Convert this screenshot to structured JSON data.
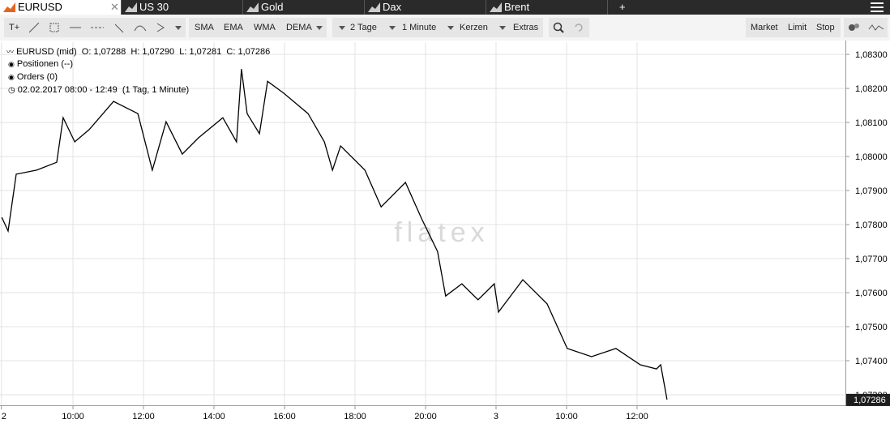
{
  "tabs": [
    "EURUSD",
    "US 30",
    "Gold",
    "Dax",
    "Brent"
  ],
  "new_tab": "+",
  "toolbar": {
    "text_tool": "T+",
    "indicators": [
      "SMA",
      "EMA",
      "WMA",
      "DEMA"
    ],
    "period": "2 Tage",
    "interval": "1 Minute",
    "style": "Kerzen",
    "extras": "Extras",
    "orders": [
      "Market",
      "Limit",
      "Stop"
    ]
  },
  "info": {
    "open": "O: 1,07288",
    "high": "H: 1,07290",
    "low": "L: 1,07281",
    "close": "C: 1,07286",
    "positions": "Positionen (--)",
    "orders": "Orders (0)",
    "range": "02.02.2017 08:00 - 12:49",
    "resolution": "(1 Tag, 1 Minute)"
  },
  "watermark": "flatex",
  "chart_data": {
    "type": "line",
    "x": [
      7.98,
      8.16,
      8.39,
      8.97,
      9.54,
      9.72,
      10.05,
      10.46,
      11.15,
      11.84,
      12.25,
      12.64,
      13.1,
      13.56,
      14.25,
      14.64,
      14.78,
      14.94,
      15.29,
      15.52,
      15.98,
      16.67,
      17.13,
      17.36,
      17.59,
      18.28,
      18.74,
      19.43,
      19.89,
      20.34,
      20.57,
      21.03,
      21.49,
      21.95,
      22.07,
      22.76,
      23.45,
      24.02,
      24.71,
      25.4,
      26.09,
      26.55,
      26.67,
      26.85
    ],
    "series": [
      {
        "name": "EURUSD (mid)",
        "color": "#000000",
        "values": [
          1.07821,
          1.07781,
          1.07948,
          1.0796,
          1.07983,
          1.08114,
          1.08043,
          1.08079,
          1.08162,
          1.08126,
          1.0796,
          1.08102,
          1.08007,
          1.08055,
          1.08114,
          1.08043,
          1.08257,
          1.08126,
          1.08067,
          1.08221,
          1.08186,
          1.08126,
          1.08043,
          1.0796,
          1.08031,
          1.0796,
          1.07852,
          1.07924,
          1.07817,
          1.07721,
          1.0759,
          1.07626,
          1.07579,
          1.07626,
          1.07543,
          1.07638,
          1.07567,
          1.07436,
          1.07412,
          1.07436,
          1.07388,
          1.07376,
          1.07388,
          1.07286
        ]
      }
    ],
    "xlim": [
      7.93,
      31.91
    ],
    "xticks": [
      {
        "value": 7.97,
        "label": "2"
      },
      {
        "value": 10,
        "label": "10:00"
      },
      {
        "value": 12,
        "label": "12:00"
      },
      {
        "value": 14,
        "label": "14:00"
      },
      {
        "value": 16,
        "label": "16:00"
      },
      {
        "value": 18,
        "label": "18:00"
      },
      {
        "value": 20,
        "label": "20:00"
      },
      {
        "value": 22,
        "label": "3"
      },
      {
        "value": 24,
        "label": "10:00"
      },
      {
        "value": 26,
        "label": "12:00"
      }
    ],
    "ylim": [
      1.07269,
      1.08336
    ],
    "yticks": [
      {
        "value": 1.083,
        "label": "1,08300"
      },
      {
        "value": 1.082,
        "label": "1,08200"
      },
      {
        "value": 1.081,
        "label": "1,08100"
      },
      {
        "value": 1.08,
        "label": "1,08000"
      },
      {
        "value": 1.079,
        "label": "1,07900"
      },
      {
        "value": 1.078,
        "label": "1,07800"
      },
      {
        "value": 1.077,
        "label": "1,07700"
      },
      {
        "value": 1.076,
        "label": "1,07600"
      },
      {
        "value": 1.075,
        "label": "1,07500"
      },
      {
        "value": 1.074,
        "label": "1,07400"
      },
      {
        "value": 1.073,
        "label": "1,07300"
      }
    ],
    "current_price": {
      "value": 1.07286,
      "label": "1,07286"
    },
    "grid": true
  }
}
